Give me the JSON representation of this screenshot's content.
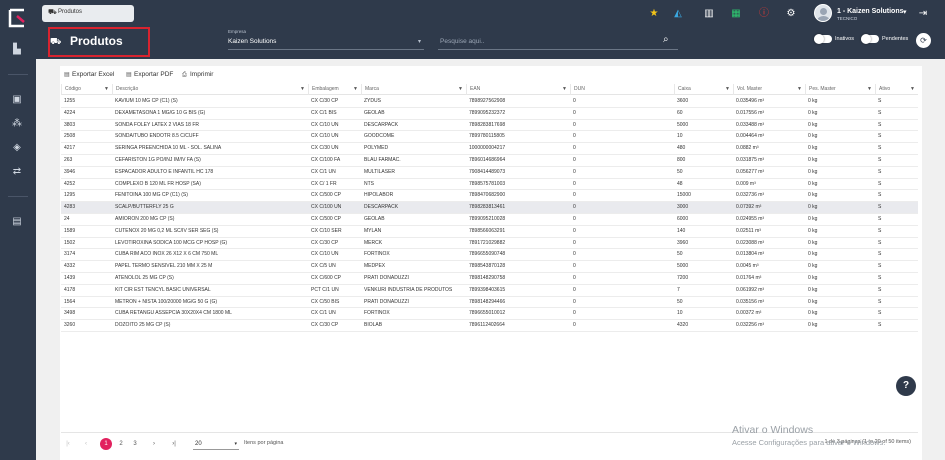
{
  "app": {
    "tab_label": "Produtos",
    "user_name": "1 - Kaizen Solutions",
    "user_role": "TECNICO",
    "brand_color": "#2f3a4b",
    "accent_color": "#e2215e"
  },
  "header": {
    "title": "Produtos",
    "empresa_label": "Empresa",
    "empresa_value": "Kaizen Solutions",
    "search_placeholder": "Pesquise aqui..",
    "toggle_inativos": "Inativos",
    "toggle_pendentes": "Pendentes"
  },
  "toolbar": {
    "export_excel": "Exportar Excel",
    "export_pdf": "Exportar PDF",
    "print": "Imprimir"
  },
  "columns": [
    "Código",
    "Descrição",
    "Embalagem",
    "Marca",
    "EAN",
    "DUN",
    "Caixa",
    "Vol. Master",
    "Pes. Master",
    "Ativo"
  ],
  "rows": [
    [
      "1255",
      "KAVIUM 10 MG CP (C1) (S)",
      "CX C/30 CP",
      "ZYDUS",
      "7898927562908",
      "0",
      "3600",
      "0.035496 m³",
      "0 kg",
      "S"
    ],
    [
      "4224",
      "DEXAMETASONA 1 MG/G 10 G BIS (G)",
      "CX C/1 BIS",
      "GEOLAB",
      "7899095232372",
      "0",
      "60",
      "0.017556 m³",
      "0 kg",
      "S"
    ],
    [
      "3803",
      "SONDA FOLEY LATEX 2 VIAS 18 FR",
      "CX C/10 UN",
      "DESCARPACK",
      "7898283817698",
      "0",
      "5000",
      "0.033488 m³",
      "0 kg",
      "S"
    ],
    [
      "2508",
      "SONDA/TUBO ENDOTR 8.5 C/CUFF",
      "CX C/10 UN",
      "GOODCOME",
      "7899780115805",
      "0",
      "10",
      "0.004464 m³",
      "0 kg",
      "S"
    ],
    [
      "4217",
      "SERINGA PREENCHIDA 10 ML - SOL. SALINA",
      "CX C/30 UN",
      "POLYMED",
      "1000000004217",
      "0",
      "480",
      "0.0882 m³",
      "0 kg",
      "S"
    ],
    [
      "263",
      "CEFARISTON 1G PO/INJ IM/IV FA (S)",
      "CX C/100 FA",
      "BLAU FARMAC.",
      "7896014686964",
      "0",
      "800",
      "0.031875 m³",
      "0 kg",
      "S"
    ],
    [
      "3946",
      "ESPACADOR ADULTO E INFANTIL HC 178",
      "CX C/1 UN",
      "MULTILASER",
      "7908414489073",
      "0",
      "50",
      "0.056277 m³",
      "0 kg",
      "S"
    ],
    [
      "4252",
      "COMPLEXO B 120 ML FR HOSP (SA)",
      "CX C/ 1 FR",
      "NTS",
      "7898575781003",
      "0",
      "48",
      "0.009 m³",
      "0 kg",
      "S"
    ],
    [
      "1295",
      "FENITOINA 100 MG CP (C1) (S)",
      "CX C/500 CP",
      "HIPOLABOR",
      "7898470682900",
      "0",
      "15000",
      "0.032736 m³",
      "0 kg",
      "S"
    ],
    [
      "4283",
      "SCALP/BUTTERFLY 25 G",
      "CX C/100 UN",
      "DESCARPACK",
      "7898283813461",
      "0",
      "3000",
      "0.07392 m³",
      "0 kg",
      "S"
    ],
    [
      "24",
      "AMIORON 200 MG CP (S)",
      "CX C/500 CP",
      "GEOLAB",
      "7899095210028",
      "0",
      "6000",
      "0.024955 m³",
      "0 kg",
      "S"
    ],
    [
      "1589",
      "CUTENOX 20 MG 0,2 ML SC/IV SER SEG (S)",
      "CX C/10 SER",
      "MYLAN",
      "7898566063291",
      "0",
      "140",
      "0.02511 m³",
      "0 kg",
      "S"
    ],
    [
      "1502",
      "LEVOTIROXINA SODICA 100 MCG CP HOSP (G)",
      "CX C/30 CP",
      "MERCK",
      "7891721029882",
      "0",
      "3960",
      "0.023088 m³",
      "0 kg",
      "S"
    ],
    [
      "3174",
      "CUBA RIM ACO INOX 26 X12 X 6 CM 750 ML",
      "CX C/10 UN",
      "FORTINOX",
      "7896655090748",
      "0",
      "50",
      "0.013804 m³",
      "0 kg",
      "S"
    ],
    [
      "4332",
      "PAPEL TERMO SENSIVEL 210 MM X 25 M",
      "CX C/5 UN",
      "MEDPEX",
      "7898543870128",
      "0",
      "5000",
      "0.0045 m³",
      "0 kg",
      "S"
    ],
    [
      "1439",
      "ATENOLOL 25 MG CP (S)",
      "CX C/600 CP",
      "PRATI DONADUZZI",
      "7898148290758",
      "0",
      "7200",
      "0.01764 m³",
      "0 kg",
      "S"
    ],
    [
      "4178",
      "KIT CIR EST TENCYL BASIC UNIVERSAL",
      "PCT C/1 UN",
      "VENKURI INDUSTRIA DE PRODUTOS",
      "7899398403615",
      "0",
      "7",
      "0.061992 m³",
      "0 kg",
      "S"
    ],
    [
      "1564",
      "METRON + NISTA 100/20000 MG/G 50 G (G)",
      "CX C/50 BIS",
      "PRATI DONADUZZI",
      "7898148294466",
      "0",
      "50",
      "0.035156 m³",
      "0 kg",
      "S"
    ],
    [
      "3498",
      "CUBA RETANGU ASSEPCIA 30X20X4 CM 1800 ML",
      "CX C/1 UN",
      "FORTINOX",
      "7896655010012",
      "0",
      "10",
      "0.00372 m³",
      "0 kg",
      "S"
    ],
    [
      "3260",
      "DOZOITO 25 MG CP (S)",
      "CX C/30 CP",
      "BIOLAB",
      "7896112402664",
      "0",
      "4320",
      "0.032256 m³",
      "0 kg",
      "S"
    ]
  ],
  "pager": {
    "pages": [
      "1",
      "2",
      "3"
    ],
    "active_page": "1",
    "page_size": "20",
    "per_page_label": "Itens por página",
    "info": "1 de 3 páginas (1 to 20 of 50 items)"
  },
  "watermark": {
    "line1": "Ativar o Windows",
    "line2": "Acesse Configurações para ativar o Windows."
  }
}
